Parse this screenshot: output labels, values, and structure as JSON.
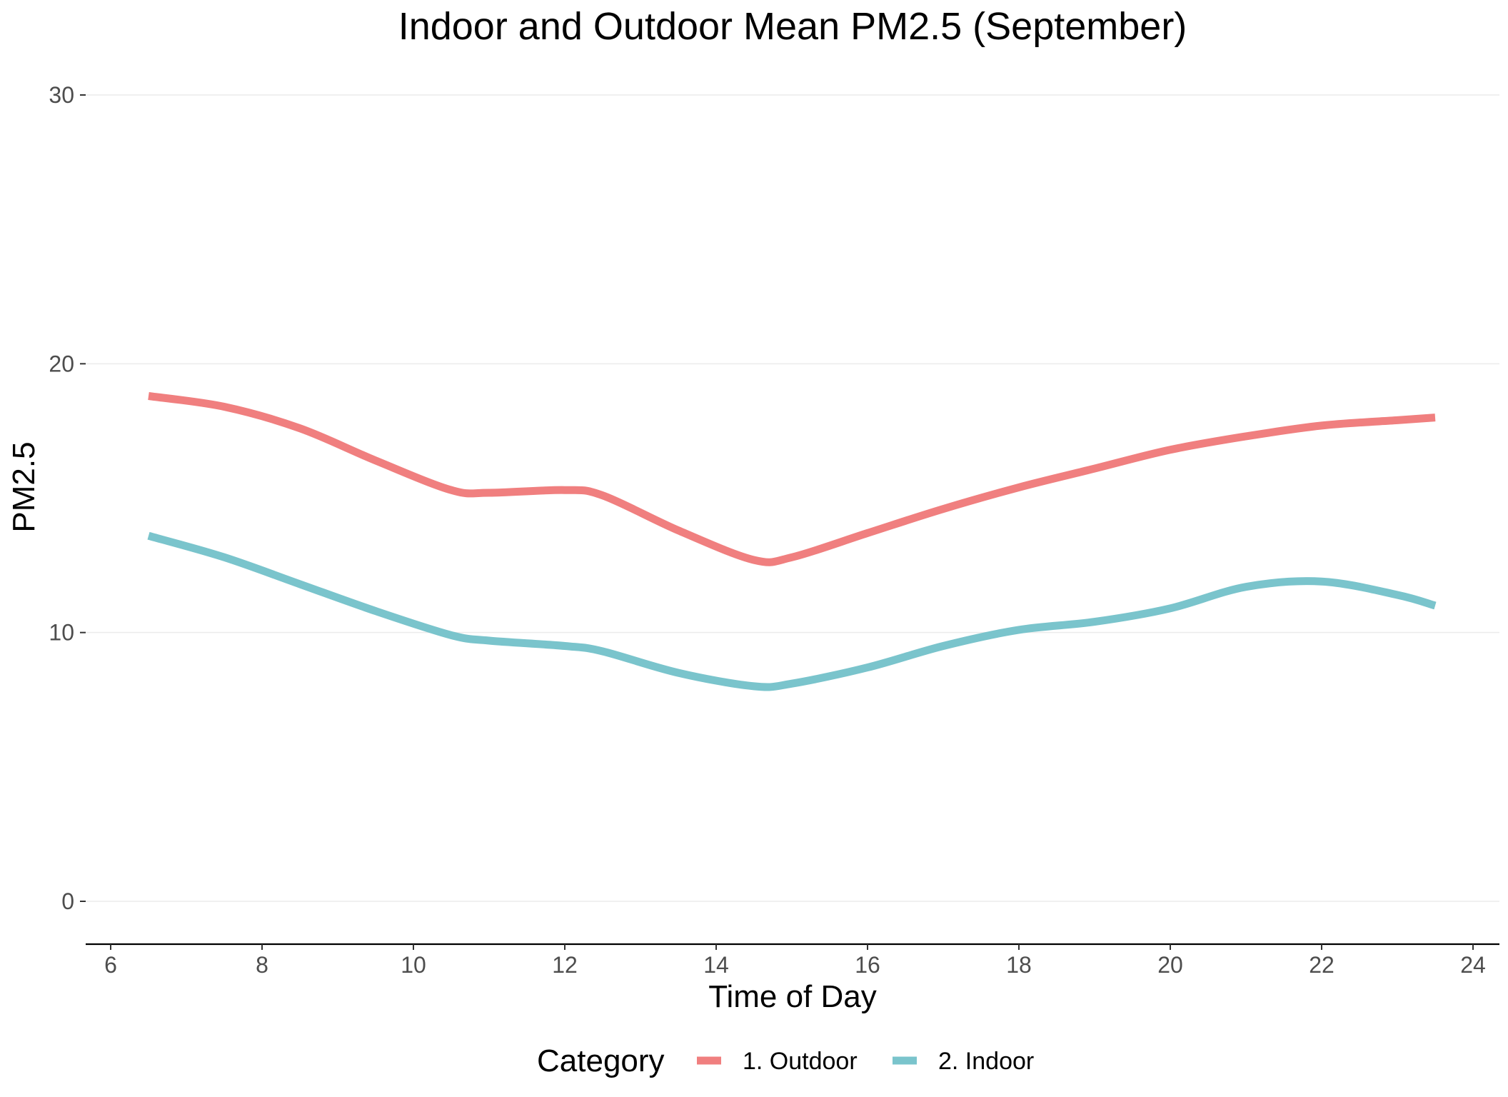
{
  "chart_data": {
    "type": "line",
    "title": "Indoor and Outdoor Mean PM2.5 (September)",
    "xlabel": "Time of Day",
    "ylabel": "PM2.5",
    "xlim": [
      6,
      24
    ],
    "ylim": [
      0,
      30
    ],
    "xticks": [
      6,
      8,
      10,
      12,
      14,
      16,
      18,
      20,
      22,
      24
    ],
    "yticks": [
      0,
      10,
      20,
      30
    ],
    "grid": "horizontal major",
    "legend": {
      "title": "Category",
      "position": "bottom"
    },
    "series": [
      {
        "name": "1. Outdoor",
        "color": "#F07F7F",
        "x": [
          6.5,
          7.5,
          8.5,
          9.5,
          10.5,
          11,
          12,
          12.5,
          13.5,
          14.5,
          15,
          16,
          17,
          18,
          19,
          20,
          21,
          22,
          23,
          23.5
        ],
        "y": [
          18.8,
          18.4,
          17.6,
          16.4,
          15.3,
          15.2,
          15.3,
          15.1,
          13.8,
          12.7,
          12.8,
          13.7,
          14.6,
          15.4,
          16.1,
          16.8,
          17.3,
          17.7,
          17.9,
          18.0
        ]
      },
      {
        "name": "2. Indoor",
        "color": "#7AC4CC",
        "x": [
          6.5,
          7.5,
          8.5,
          9.5,
          10.5,
          11,
          12,
          12.5,
          13.5,
          14.5,
          15,
          16,
          17,
          18,
          19,
          20,
          21,
          22,
          23,
          23.5
        ],
        "y": [
          13.6,
          12.8,
          11.8,
          10.8,
          9.9,
          9.7,
          9.5,
          9.3,
          8.5,
          8.0,
          8.1,
          8.7,
          9.5,
          10.1,
          10.4,
          10.9,
          11.7,
          11.9,
          11.4,
          11.0
        ]
      }
    ]
  }
}
